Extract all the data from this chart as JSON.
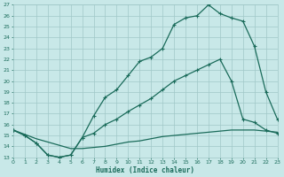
{
  "xlabel": "Humidex (Indice chaleur)",
  "bg_color": "#c8e8e8",
  "line_color": "#1a6b5a",
  "grid_color": "#a0c8c8",
  "ylim": [
    13,
    27
  ],
  "xlim": [
    0,
    23
  ],
  "yticks": [
    13,
    14,
    15,
    16,
    17,
    18,
    19,
    20,
    21,
    22,
    23,
    24,
    25,
    26,
    27
  ],
  "xticks": [
    0,
    1,
    2,
    3,
    4,
    5,
    6,
    7,
    8,
    9,
    10,
    11,
    12,
    13,
    14,
    15,
    16,
    17,
    18,
    19,
    20,
    21,
    22,
    23
  ],
  "line1_x": [
    0,
    1,
    2,
    3,
    4,
    5,
    6,
    7,
    8,
    9,
    10,
    11,
    12,
    13,
    14,
    15,
    16,
    17,
    18,
    19,
    20,
    21,
    22,
    23
  ],
  "line1_y": [
    15.5,
    15.0,
    14.3,
    13.2,
    13.0,
    13.2,
    14.8,
    16.8,
    18.5,
    19.2,
    20.5,
    21.8,
    22.2,
    23.0,
    25.2,
    25.8,
    26.0,
    27.0,
    26.2,
    25.8,
    25.5,
    23.2,
    19.0,
    16.5
  ],
  "line1_markers": [
    0,
    1,
    2,
    3,
    4,
    5,
    6,
    7,
    8,
    9,
    10,
    11,
    12,
    13,
    14,
    15,
    16,
    17,
    18,
    19,
    20,
    21,
    22,
    23
  ],
  "line2_x": [
    0,
    1,
    2,
    3,
    4,
    5,
    6,
    7,
    8,
    9,
    10,
    11,
    12,
    13,
    14,
    15,
    16,
    17,
    18,
    19,
    20,
    21,
    22,
    23
  ],
  "line2_y": [
    15.5,
    15.0,
    14.3,
    13.2,
    13.0,
    13.2,
    14.8,
    15.2,
    16.0,
    16.5,
    17.2,
    17.8,
    18.4,
    19.2,
    20.0,
    20.5,
    21.0,
    21.5,
    22.0,
    20.0,
    16.5,
    16.2,
    15.5,
    15.2
  ],
  "line3_x": [
    0,
    1,
    2,
    3,
    4,
    5,
    6,
    7,
    8,
    9,
    10,
    11,
    12,
    13,
    14,
    15,
    16,
    17,
    18,
    19,
    20,
    21,
    22,
    23
  ],
  "line3_y": [
    15.5,
    15.1,
    14.7,
    14.4,
    14.1,
    13.8,
    13.8,
    13.9,
    14.0,
    14.2,
    14.4,
    14.5,
    14.7,
    14.9,
    15.0,
    15.1,
    15.2,
    15.3,
    15.4,
    15.5,
    15.5,
    15.5,
    15.4,
    15.3
  ]
}
